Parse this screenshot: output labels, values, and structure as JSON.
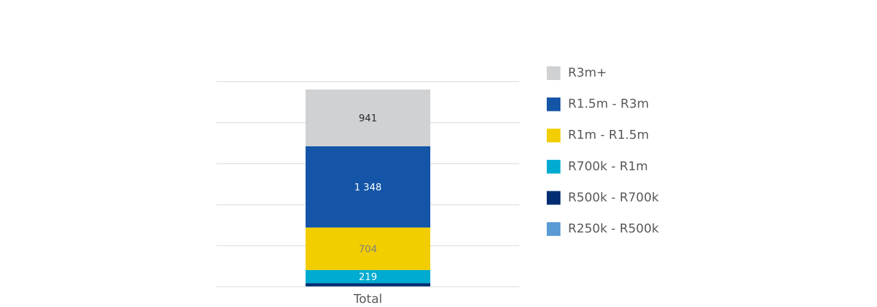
{
  "chart_data": {
    "type": "bar",
    "stacked": true,
    "categories": [
      "Total"
    ],
    "ylim": [
      0,
      3400
    ],
    "grid": true,
    "legend_position": "right",
    "series": [
      {
        "name": "R250k - R500k",
        "values": [
          3
        ],
        "color": "#5b9bd5",
        "label": ""
      },
      {
        "name": "R500k - R700k",
        "values": [
          52
        ],
        "color": "#002d72",
        "label": ""
      },
      {
        "name": "R700k - R1m",
        "values": [
          219
        ],
        "color": "#00abd1",
        "label": "219",
        "label_color": "#ffffff"
      },
      {
        "name": "R1m - R1.5m",
        "values": [
          704
        ],
        "color": "#f2cd00",
        "label": "704",
        "label_color": "#7f7f7f"
      },
      {
        "name": "R1.5m - R3m",
        "values": [
          1348
        ],
        "color": "#1455a7",
        "label": "1 348",
        "label_color": "#ffffff"
      },
      {
        "name": "R3m+",
        "values": [
          941
        ],
        "color": "#d0d1d3",
        "label": "941",
        "label_color": "#262626"
      }
    ],
    "legend_order": [
      "R3m+",
      "R1.5m - R3m",
      "R1m - R1.5m",
      "R700k - R1m",
      "R500k - R700k",
      "R250k - R500k"
    ]
  }
}
